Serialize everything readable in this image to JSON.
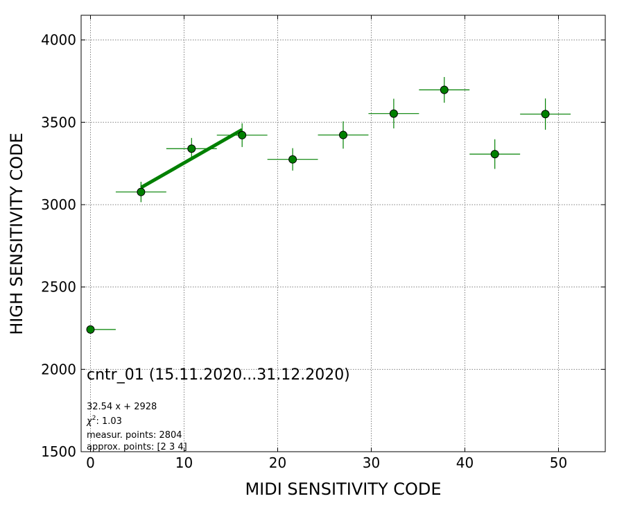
{
  "chart_data": {
    "type": "scatter",
    "xlabel": "MIDI SENSITIVITY CODE",
    "ylabel": "HIGH SENSITIVITY CODE",
    "xlim": [
      -1,
      55
    ],
    "ylim": [
      1500,
      4150
    ],
    "xticks": [
      0,
      10,
      20,
      30,
      40,
      50
    ],
    "yticks": [
      1500,
      2000,
      2500,
      3000,
      3500,
      4000
    ],
    "grid": true,
    "colors": {
      "points": "#008000",
      "fit": "#008000"
    },
    "points": [
      {
        "x": 0.0,
        "y": 2242,
        "xerr": [
          0.0,
          2.7
        ],
        "yerr": 0
      },
      {
        "x": 5.4,
        "y": 3077,
        "xerr": [
          2.7,
          2.7
        ],
        "yerr": 62
      },
      {
        "x": 10.8,
        "y": 3340,
        "xerr": [
          2.7,
          2.7
        ],
        "yerr": 65
      },
      {
        "x": 16.2,
        "y": 3422,
        "xerr": [
          2.7,
          2.7
        ],
        "yerr": 72
      },
      {
        "x": 21.6,
        "y": 3275,
        "xerr": [
          2.7,
          2.7
        ],
        "yerr": 68
      },
      {
        "x": 27.0,
        "y": 3423,
        "xerr": [
          2.7,
          2.7
        ],
        "yerr": 83
      },
      {
        "x": 32.4,
        "y": 3553,
        "xerr": [
          2.7,
          2.7
        ],
        "yerr": 90
      },
      {
        "x": 37.8,
        "y": 3697,
        "xerr": [
          2.7,
          2.7
        ],
        "yerr": 78
      },
      {
        "x": 43.2,
        "y": 3307,
        "xerr": [
          2.7,
          2.7
        ],
        "yerr": 90
      },
      {
        "x": 48.6,
        "y": 3550,
        "xerr": [
          2.7,
          2.7
        ],
        "yerr": 95
      }
    ],
    "fit_line": {
      "slope": 32.54,
      "intercept": 2928,
      "x_range": [
        5.4,
        16.2
      ]
    },
    "annotations": {
      "title": "cntr_01 (15.11.2020...31.12.2020)",
      "equation": "32.54 x + 2928",
      "chi2_label": "χ",
      "chi2_sup": "2",
      "chi2_value": ": 1.03",
      "measured": "measur. points: 2804",
      "approx": "approx. points: [2 3 4]"
    }
  }
}
